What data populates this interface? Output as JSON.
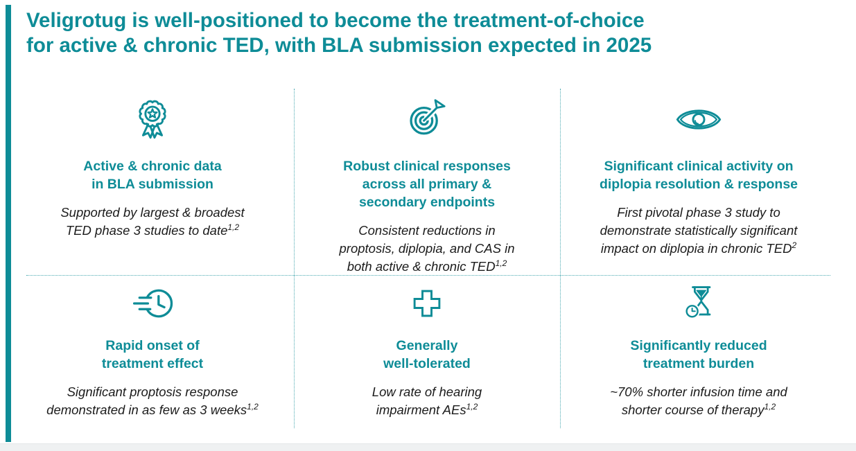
{
  "accent_color": "#0e8c97",
  "title": {
    "line1": "Veligrotug is well-positioned to become the treatment-of-choice",
    "line2": "for active & chronic TED, with BLA submission expected in 2025"
  },
  "cards": [
    {
      "icon": "award-ribbon-icon",
      "heading_lines": [
        "Active & chronic data",
        "in BLA submission"
      ],
      "body_lines": [
        "Supported by largest & broadest",
        "TED phase 3 studies to date"
      ],
      "superscript": "1,2"
    },
    {
      "icon": "target-arrow-icon",
      "heading_lines": [
        "Robust clinical responses",
        "across all primary &",
        "secondary endpoints"
      ],
      "body_lines": [
        "Consistent reductions in",
        "proptosis, diplopia, and CAS in",
        "both active & chronic TED"
      ],
      "superscript": "1,2"
    },
    {
      "icon": "eye-icon",
      "heading_lines": [
        "Significant clinical activity on",
        "diplopia resolution & response"
      ],
      "body_lines": [
        "First pivotal phase 3 study to",
        "demonstrate statistically significant",
        "impact on diplopia in chronic TED"
      ],
      "superscript": "2"
    },
    {
      "icon": "speed-clock-icon",
      "heading_lines": [
        "Rapid onset of",
        "treatment effect"
      ],
      "body_lines": [
        "Significant proptosis response",
        "demonstrated in as few as 3 weeks"
      ],
      "superscript": "1,2"
    },
    {
      "icon": "medical-cross-icon",
      "heading_lines": [
        "Generally",
        "well-tolerated"
      ],
      "body_lines": [
        "Low rate of hearing",
        "impairment AEs"
      ],
      "superscript": "1,2"
    },
    {
      "icon": "hourglass-clock-icon",
      "heading_lines": [
        "Significantly reduced",
        "treatment burden"
      ],
      "body_lines": [
        "~70% shorter infusion time and",
        "shorter course of therapy"
      ],
      "superscript": "1,2"
    }
  ]
}
